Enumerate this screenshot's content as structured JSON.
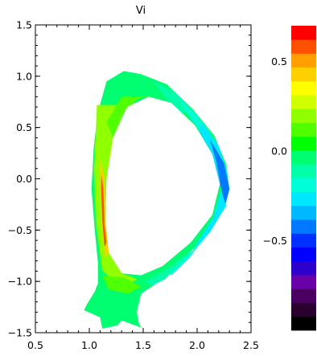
{
  "chart_data": [
    {
      "type": "heatmap",
      "title": "Vi",
      "xlabel": "",
      "ylabel": "",
      "xlim": [
        0.5,
        2.5
      ],
      "ylim": [
        -1.5,
        1.5
      ],
      "xticks": [
        0.5,
        1.0,
        1.5,
        2.0,
        2.5
      ],
      "yticks": [
        -1.5,
        -1.0,
        -0.5,
        0.0,
        0.5,
        1.0,
        1.5
      ],
      "xtick_labels": [
        "0.5",
        "1.0",
        "1.5",
        "2.0",
        "2.5"
      ],
      "ytick_labels": [
        "−1.5",
        "−1.0",
        "−0.5",
        "0.0",
        "0.5",
        "1.0",
        "1.5"
      ],
      "grid": false,
      "outer_boundary": [
        [
          1.16,
          0.95
        ],
        [
          1.32,
          1.05
        ],
        [
          1.48,
          1.02
        ],
        [
          1.72,
          0.92
        ],
        [
          1.96,
          0.68
        ],
        [
          2.16,
          0.42
        ],
        [
          2.27,
          0.14
        ],
        [
          2.3,
          -0.1
        ],
        [
          2.25,
          -0.3
        ],
        [
          2.08,
          -0.55
        ],
        [
          1.86,
          -0.8
        ],
        [
          1.62,
          -1.02
        ],
        [
          1.48,
          -1.12
        ],
        [
          1.42,
          -1.32
        ],
        [
          1.48,
          -1.45
        ],
        [
          1.3,
          -1.38
        ],
        [
          1.26,
          -1.43
        ],
        [
          1.12,
          -1.46
        ],
        [
          1.1,
          -1.35
        ],
        [
          0.95,
          -1.28
        ],
        [
          0.98,
          -1.22
        ],
        [
          1.05,
          -1.1
        ],
        [
          1.08,
          -1.02
        ],
        [
          1.08,
          -0.82
        ],
        [
          1.05,
          -0.5
        ],
        [
          1.02,
          -0.1
        ],
        [
          1.04,
          0.3
        ],
        [
          1.08,
          0.65
        ]
      ],
      "inner_boundary": [
        [
          1.35,
          0.7
        ],
        [
          1.55,
          0.8
        ],
        [
          1.76,
          0.74
        ],
        [
          1.98,
          0.52
        ],
        [
          2.14,
          0.24
        ],
        [
          2.21,
          -0.05
        ],
        [
          2.14,
          -0.35
        ],
        [
          1.94,
          -0.62
        ],
        [
          1.68,
          -0.85
        ],
        [
          1.48,
          -0.94
        ],
        [
          1.3,
          -0.92
        ],
        [
          1.18,
          -0.72
        ],
        [
          1.15,
          -0.4
        ],
        [
          1.16,
          0.0
        ],
        [
          1.22,
          0.4
        ]
      ],
      "features": [
        {
          "value": 0.2,
          "points": [
            [
              1.07,
              0.72
            ],
            [
              1.35,
              0.72
            ],
            [
              1.22,
              0.4
            ],
            [
              1.16,
              0.0
            ],
            [
              1.15,
              -0.4
            ],
            [
              1.18,
              -0.72
            ],
            [
              1.3,
              -0.92
            ],
            [
              1.45,
              -0.98
            ],
            [
              1.3,
              -1.05
            ],
            [
              1.12,
              -0.9
            ],
            [
              1.06,
              -0.4
            ],
            [
              1.04,
              0.1
            ],
            [
              1.06,
              0.45
            ]
          ]
        },
        {
          "value": 0.1,
          "points": [
            [
              1.12,
              -0.95
            ],
            [
              1.32,
              -0.96
            ],
            [
              1.48,
              -1.05
            ],
            [
              1.36,
              -1.12
            ],
            [
              1.18,
              -1.08
            ]
          ]
        },
        {
          "value": 0.0,
          "points": [
            [
              1.42,
              -1.1
            ],
            [
              1.6,
              -1.0
            ],
            [
              1.48,
              -1.12
            ],
            [
              1.44,
              -1.3
            ],
            [
              1.46,
              -1.4
            ],
            [
              1.34,
              -1.3
            ]
          ]
        },
        {
          "value": 0.15,
          "points": [
            [
              1.22,
              0.4
            ],
            [
              1.3,
              0.62
            ],
            [
              1.45,
              0.78
            ],
            [
              1.55,
              0.8
            ],
            [
              1.3,
              0.8
            ],
            [
              1.16,
              0.55
            ]
          ]
        },
        {
          "value": -0.1,
          "points": [
            [
              1.6,
              0.95
            ],
            [
              1.8,
              0.84
            ],
            [
              1.95,
              0.67
            ],
            [
              1.86,
              0.64
            ],
            [
              1.7,
              0.8
            ]
          ]
        },
        {
          "value": -0.2,
          "points": [
            [
              1.82,
              0.8
            ],
            [
              1.98,
              0.64
            ],
            [
              2.12,
              0.45
            ],
            [
              2.04,
              0.44
            ],
            [
              1.92,
              0.62
            ]
          ]
        },
        {
          "value": -0.3,
          "points": [
            [
              2.04,
              0.55
            ],
            [
              2.2,
              0.32
            ],
            [
              2.28,
              0.05
            ],
            [
              2.2,
              -0.05
            ],
            [
              2.15,
              0.22
            ],
            [
              2.02,
              0.46
            ]
          ]
        },
        {
          "value": -0.45,
          "points": [
            [
              2.12,
              0.38
            ],
            [
              2.25,
              0.15
            ],
            [
              2.3,
              -0.1
            ],
            [
              2.26,
              -0.26
            ],
            [
              2.22,
              -0.08
            ],
            [
              2.18,
              0.16
            ]
          ]
        },
        {
          "value": -0.3,
          "points": [
            [
              2.22,
              -0.12
            ],
            [
              2.27,
              -0.26
            ],
            [
              2.12,
              -0.52
            ],
            [
              1.94,
              -0.74
            ],
            [
              2.0,
              -0.62
            ],
            [
              2.15,
              -0.38
            ]
          ]
        },
        {
          "value": -0.2,
          "points": [
            [
              1.96,
              -0.7
            ],
            [
              2.12,
              -0.5
            ],
            [
              1.92,
              -0.78
            ],
            [
              1.76,
              -0.94
            ],
            [
              1.7,
              -0.9
            ]
          ]
        },
        {
          "value": -0.1,
          "points": [
            [
              1.72,
              -0.88
            ],
            [
              1.88,
              -0.78
            ],
            [
              1.7,
              -0.98
            ],
            [
              1.58,
              -1.04
            ],
            [
              1.52,
              -1.0
            ]
          ]
        },
        {
          "value": 0.45,
          "points": [
            [
              1.1,
              0.2
            ],
            [
              1.14,
              0.0
            ],
            [
              1.14,
              -0.4
            ],
            [
              1.18,
              -0.7
            ],
            [
              1.15,
              -0.78
            ],
            [
              1.11,
              -0.4
            ],
            [
              1.1,
              -0.1
            ]
          ]
        },
        {
          "value": 0.6,
          "points": [
            [
              1.11,
              0.05
            ],
            [
              1.13,
              -0.1
            ],
            [
              1.14,
              -0.45
            ],
            [
              1.16,
              -0.62
            ],
            [
              1.14,
              -0.66
            ],
            [
              1.12,
              -0.4
            ],
            [
              1.11,
              -0.1
            ]
          ]
        }
      ],
      "colorbar": {
        "min": -1.0,
        "max": 0.7,
        "ticks": [
          0.5,
          0.0,
          -0.5
        ],
        "tick_labels": [
          "0.5",
          "0.0",
          "−0.5"
        ],
        "colors": [
          "#000000",
          "#2a002e",
          "#4a0060",
          "#6a00a8",
          "#2e00cc",
          "#0000ff",
          "#0030ff",
          "#0078ff",
          "#00b8ff",
          "#00e8ff",
          "#00ffd8",
          "#00ffa8",
          "#00ff70",
          "#00ff00",
          "#50ff00",
          "#90ff00",
          "#d0ff00",
          "#ffff00",
          "#ffd000",
          "#ffa000",
          "#ff5000",
          "#ff0000"
        ]
      }
    }
  ]
}
